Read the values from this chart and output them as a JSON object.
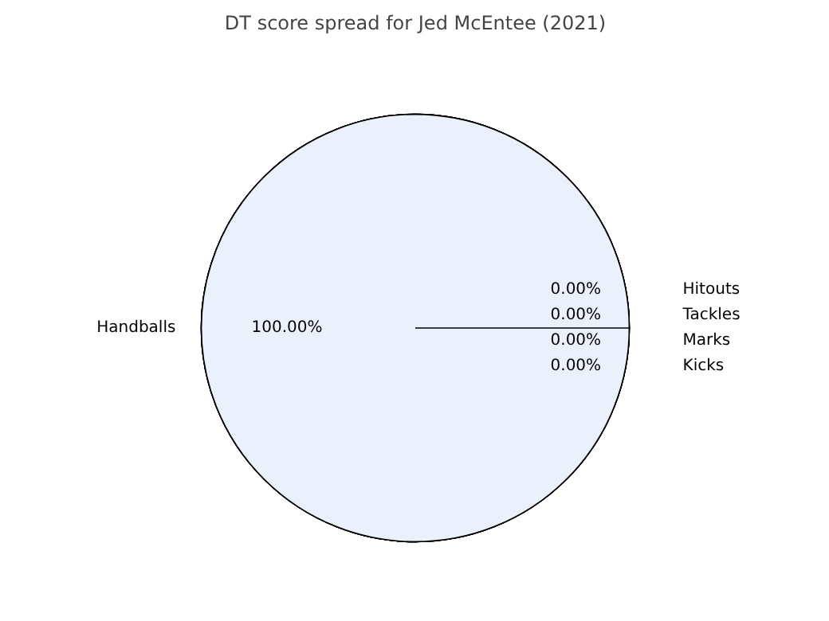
{
  "chart_data": {
    "type": "pie",
    "title": "DT score spread for Jed McEntee (2021)",
    "categories": [
      "Kicks",
      "Handballs",
      "Marks",
      "Tackles",
      "Hitouts"
    ],
    "values": [
      0,
      100,
      0,
      0,
      0
    ],
    "colors": [
      "#ebf0fd",
      "#ebf0fd",
      "#ebf0fd",
      "#ebf0fd",
      "#ebf0fd"
    ],
    "value_labels": [
      "0.00%",
      "100.00%",
      "0.00%",
      "0.00%",
      "0.00%"
    ]
  }
}
